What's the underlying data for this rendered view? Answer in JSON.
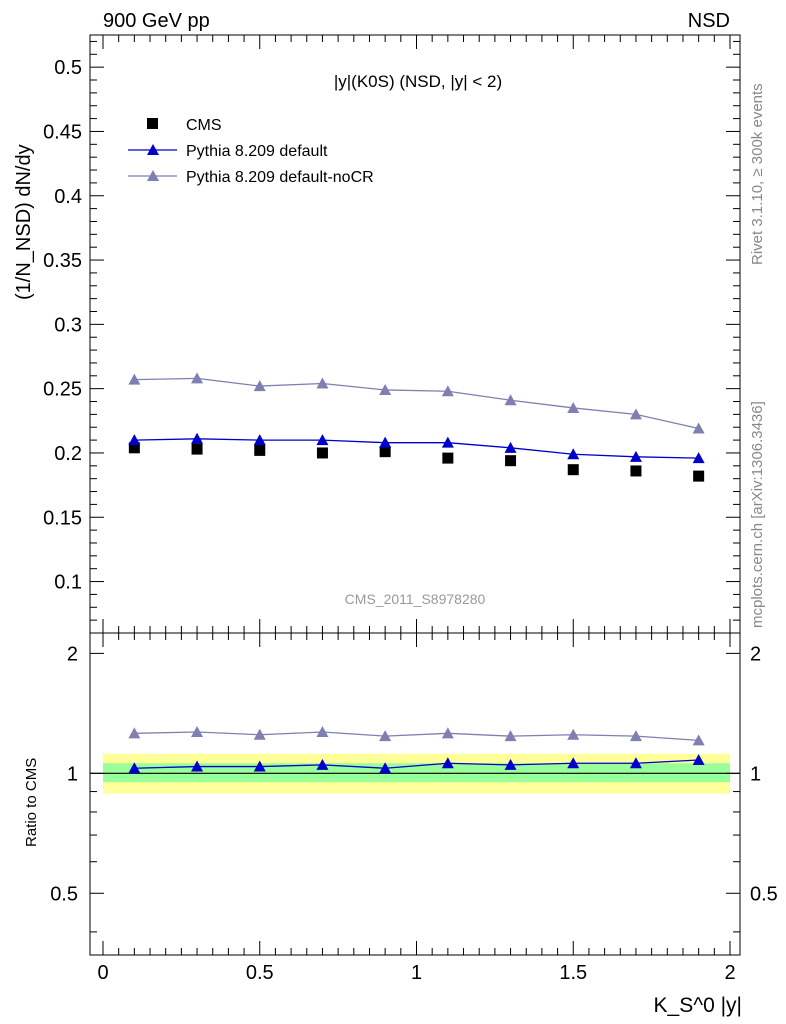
{
  "header": {
    "energy_label": "900 GeV pp",
    "process_label": "NSD"
  },
  "side_labels": {
    "rivet": "Rivet 3.1.10, ≥ 300k events",
    "source": "mcplots.cern.ch [arXiv:1306.3436]"
  },
  "chart_data": {
    "type": "line",
    "title": "|y|(K0S) (NSD, |y| < 2)",
    "analysis_id": "CMS_2011_S8978280",
    "xlabel": "K_S^0 |y|",
    "ylabel": "(1/N_NSD) dN/dy",
    "xlim": [
      0,
      2
    ],
    "ylim": [
      0.06,
      0.525
    ],
    "x_ticks": [
      "0",
      "0.5",
      "1",
      "1.5",
      "2"
    ],
    "y_ticks": [
      "0.1",
      "0.15",
      "0.2",
      "0.25",
      "0.3",
      "0.35",
      "0.4",
      "0.45",
      "0.5"
    ],
    "x": [
      0.1,
      0.3,
      0.5,
      0.7,
      0.9,
      1.1,
      1.3,
      1.5,
      1.7,
      1.9
    ],
    "series": [
      {
        "name": "CMS",
        "marker": "square",
        "color": "#000000",
        "values": [
          0.204,
          0.203,
          0.202,
          0.2,
          0.201,
          0.196,
          0.194,
          0.187,
          0.186,
          0.182
        ]
      },
      {
        "name": "Pythia 8.209 default",
        "marker": "triangle",
        "color": "#0000cc",
        "values": [
          0.21,
          0.211,
          0.21,
          0.21,
          0.208,
          0.208,
          0.204,
          0.199,
          0.197,
          0.196
        ]
      },
      {
        "name": "Pythia 8.209 default-noCR",
        "marker": "triangle",
        "color": "#7f7fb2",
        "values": [
          0.257,
          0.258,
          0.252,
          0.254,
          0.249,
          0.248,
          0.241,
          0.235,
          0.23,
          0.219
        ]
      }
    ],
    "ratio": {
      "ylabel": "Ratio to CMS",
      "ylim": [
        0.35,
        2.25
      ],
      "y_ticks": [
        "0.5",
        "1",
        "2"
      ],
      "band_outer": [
        0.89,
        1.12
      ],
      "band_inner": [
        0.95,
        1.06
      ],
      "series": [
        {
          "name": "Pythia 8.209 default",
          "color": "#0000cc",
          "values": [
            1.03,
            1.04,
            1.04,
            1.05,
            1.03,
            1.06,
            1.05,
            1.06,
            1.06,
            1.08
          ]
        },
        {
          "name": "Pythia 8.209 default-noCR",
          "color": "#7f7fb2",
          "values": [
            1.26,
            1.27,
            1.25,
            1.27,
            1.24,
            1.26,
            1.24,
            1.25,
            1.24,
            1.21
          ]
        }
      ]
    }
  }
}
